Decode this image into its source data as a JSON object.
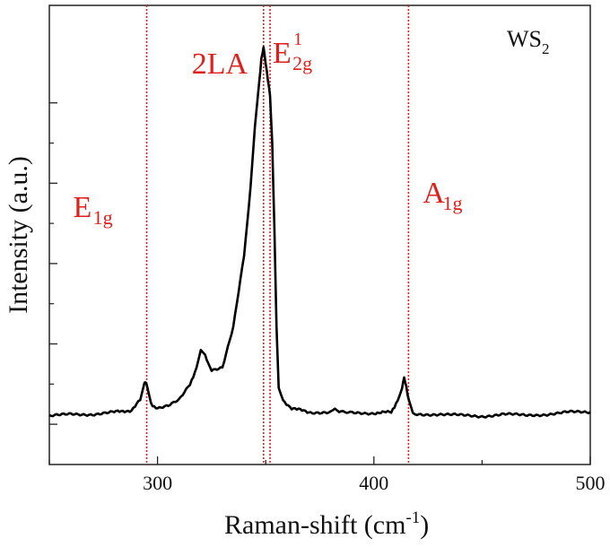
{
  "chart_data": {
    "type": "line",
    "title": "",
    "sample_label": {
      "main": "WS",
      "sub": "2"
    },
    "xlabel": "Raman-shift (cm",
    "xlabel_sup": "-1",
    "xlabel_end": ")",
    "ylabel": "Intensity (a.u.)",
    "xlim": [
      250,
      500
    ],
    "ylim": [
      0,
      1
    ],
    "xticks": [
      300,
      400,
      500
    ],
    "xtick_labels": [
      "300",
      "400",
      "500"
    ],
    "yticks": [
      0.06,
      0.26,
      0.46,
      0.66,
      0.86
    ],
    "grid": false,
    "series": [
      {
        "name": "WS2",
        "color": "#000000",
        "x": [
          250,
          260,
          270,
          280,
          288,
          292,
          294,
          295,
          297,
          300,
          305,
          310,
          315,
          318,
          320,
          322,
          325,
          330,
          335,
          340,
          343,
          345,
          347,
          348,
          349,
          350,
          351,
          352,
          353,
          354,
          355,
          356,
          358,
          362,
          370,
          380,
          382,
          384,
          390,
          400,
          408,
          411,
          413,
          414,
          415,
          416,
          418,
          420,
          430,
          440,
          450,
          460,
          470,
          480,
          490,
          500
        ],
        "y": [
          0.08,
          0.085,
          0.085,
          0.09,
          0.095,
          0.12,
          0.165,
          0.16,
          0.11,
          0.1,
          0.105,
          0.12,
          0.16,
          0.2,
          0.245,
          0.23,
          0.195,
          0.2,
          0.3,
          0.48,
          0.65,
          0.8,
          0.91,
          0.97,
          1.0,
          0.96,
          0.92,
          0.88,
          0.76,
          0.55,
          0.3,
          0.15,
          0.12,
          0.1,
          0.09,
          0.09,
          0.1,
          0.09,
          0.088,
          0.088,
          0.09,
          0.12,
          0.15,
          0.175,
          0.15,
          0.12,
          0.09,
          0.085,
          0.085,
          0.082,
          0.08,
          0.085,
          0.082,
          0.085,
          0.09,
          0.09
        ]
      }
    ],
    "markers": [
      {
        "name": "E1g",
        "x": 295,
        "main": "E",
        "sub": "1g",
        "sup": ""
      },
      {
        "name": "2LA",
        "x": 349,
        "main": "2LA",
        "sub": "",
        "sup": ""
      },
      {
        "name": "E2g1",
        "x": 352,
        "main": "E",
        "sub": "2g",
        "sup": "1"
      },
      {
        "name": "A1g",
        "x": 416,
        "main": "A",
        "sub": "1g",
        "sup": ""
      }
    ]
  },
  "colors": {
    "marker": "#e0201c",
    "line": "#000000",
    "axis": "#222222"
  }
}
